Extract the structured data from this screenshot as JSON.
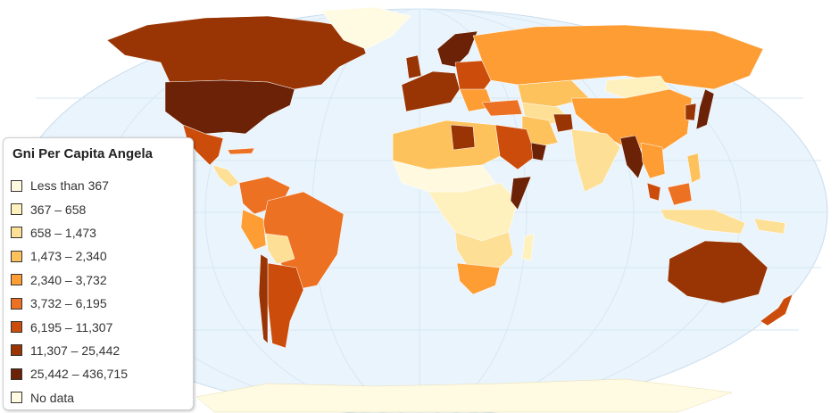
{
  "legend": {
    "title": "Gni Per Capita Angela",
    "items": [
      {
        "label": "Less than 367",
        "color": "#fff9df"
      },
      {
        "label": "367 – 658",
        "color": "#fff1bd"
      },
      {
        "label": "658 – 1,473",
        "color": "#fedf96"
      },
      {
        "label": "1,473 – 2,340",
        "color": "#fec25c"
      },
      {
        "label": "2,340 – 3,732",
        "color": "#fd9d34"
      },
      {
        "label": "3,732 – 6,195",
        "color": "#ec7123"
      },
      {
        "label": "6,195 – 11,307",
        "color": "#cc4d0b"
      },
      {
        "label": "11,307 – 25,442",
        "color": "#993505"
      },
      {
        "label": "25,442 – 436,715",
        "color": "#6b2206"
      },
      {
        "label": "No data",
        "color": "#fffbe3"
      }
    ]
  },
  "colors": {
    "ocean": "#eaf4fc",
    "graticule": "#d6e7f5"
  }
}
